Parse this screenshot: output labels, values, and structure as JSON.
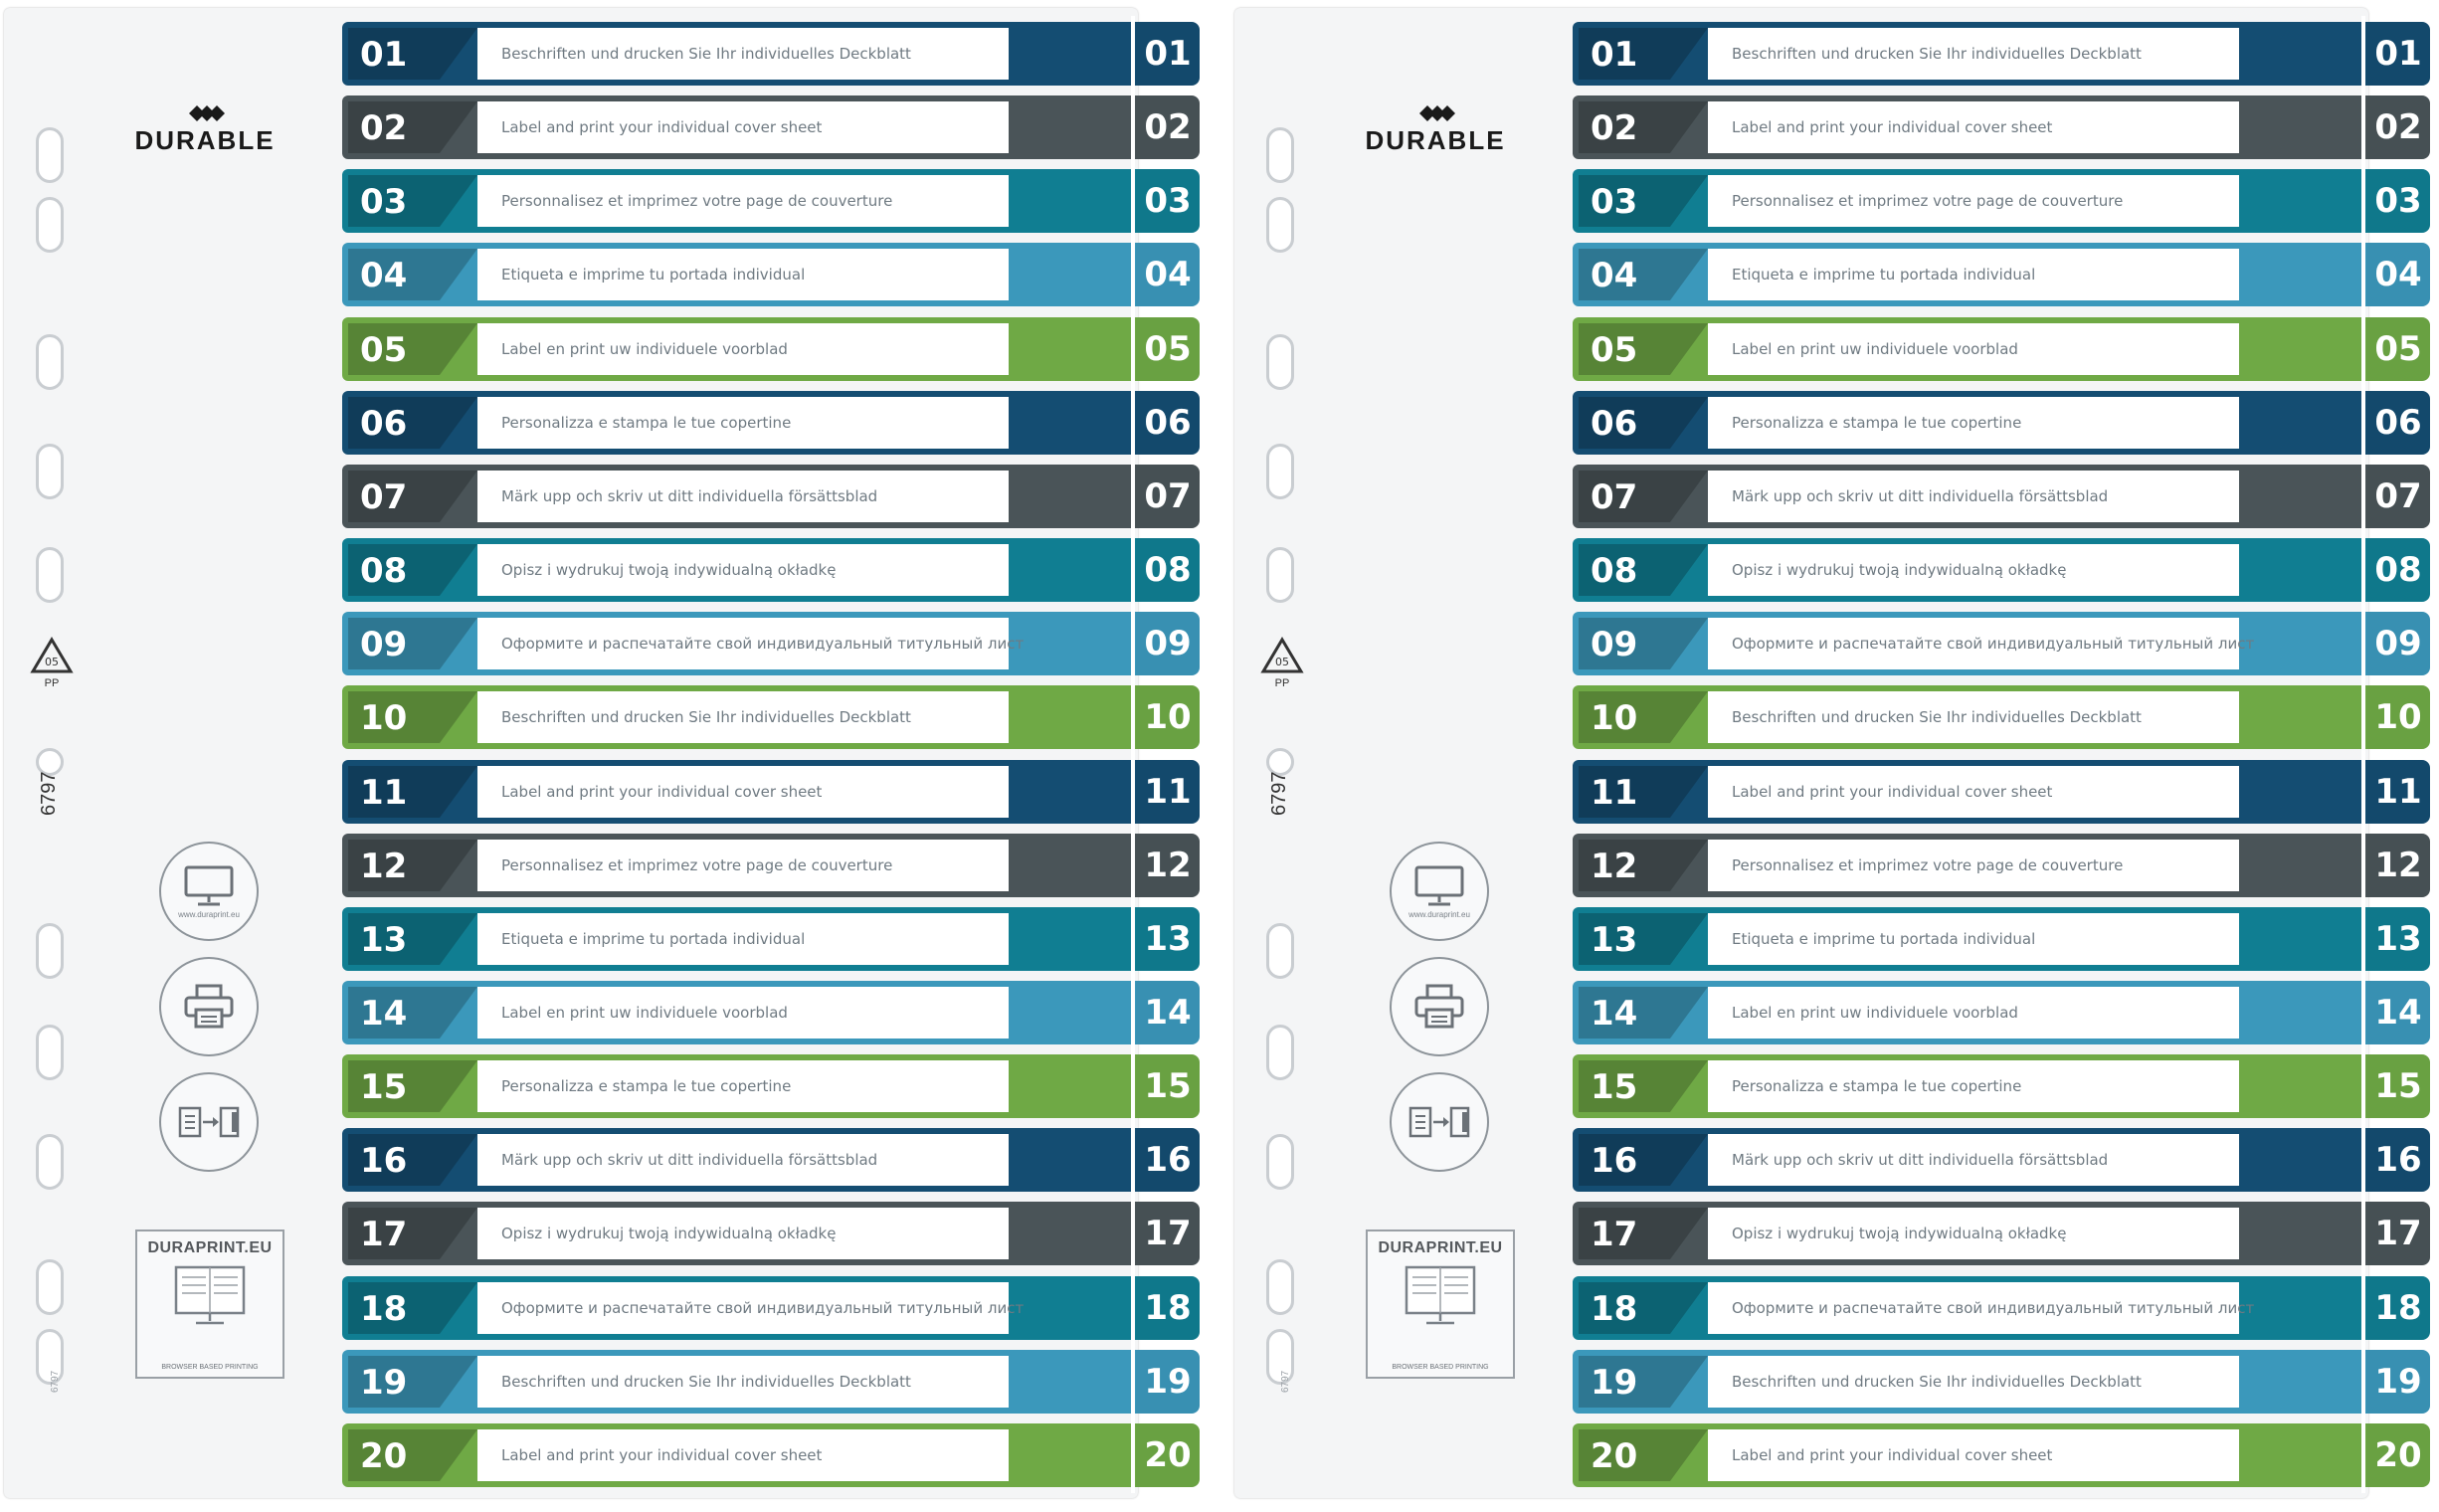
{
  "brand": {
    "name": "DURABLE"
  },
  "recycle": {
    "code": "05",
    "material": "PP"
  },
  "product_code": "6797",
  "small_code": "6797",
  "icons": [
    {
      "name": "monitor-icon",
      "caption": "www.duraprint.eu"
    },
    {
      "name": "printer-icon",
      "caption": ""
    },
    {
      "name": "insert-sheet-icon",
      "caption": ""
    }
  ],
  "duraprint": {
    "title": "DURAPRINT.EU",
    "subtitle": "BROWSER BASED PRINTING"
  },
  "colors": {
    "navy": "#144d72",
    "grey": "#4a5458",
    "teal": "#107e92",
    "lightblue": "#3b98bb",
    "green": "#6fa945"
  },
  "sheets": [
    {
      "rows": [
        {
          "num": "01",
          "text": "Beschriften und drucken Sie Ihr individuelles Deckblatt",
          "color": "#144d72"
        },
        {
          "num": "02",
          "text": "Label and print your individual cover sheet",
          "color": "#4a5458"
        },
        {
          "num": "03",
          "text": "Personnalisez et imprimez votre page de couverture",
          "color": "#107e92"
        },
        {
          "num": "04",
          "text": "Etiqueta e imprime tu portada individual",
          "color": "#3b98bb"
        },
        {
          "num": "05",
          "text": "Label en print uw individuele voorblad",
          "color": "#6fa945"
        },
        {
          "num": "06",
          "text": "Personalizza e stampa le tue copertine",
          "color": "#144d72"
        },
        {
          "num": "07",
          "text": "Märk upp och skriv ut ditt individuella försättsblad",
          "color": "#4a5458"
        },
        {
          "num": "08",
          "text": "Opisz i wydrukuj twoją indywidualną okładkę",
          "color": "#107e92"
        },
        {
          "num": "09",
          "text": "Оформите и распечатайте свой индивидуальный титульный лист",
          "color": "#3b98bb"
        },
        {
          "num": "10",
          "text": "Beschriften und drucken Sie Ihr individuelles Deckblatt",
          "color": "#6fa945"
        },
        {
          "num": "11",
          "text": "Label and print your individual cover sheet",
          "color": "#144d72"
        },
        {
          "num": "12",
          "text": "Personnalisez et imprimez votre page de couverture",
          "color": "#4a5458"
        },
        {
          "num": "13",
          "text": "Etiqueta e imprime tu portada individual",
          "color": "#107e92"
        },
        {
          "num": "14",
          "text": "Label en print uw individuele voorblad",
          "color": "#3b98bb"
        },
        {
          "num": "15",
          "text": "Personalizza e stampa le tue copertine",
          "color": "#6fa945"
        },
        {
          "num": "16",
          "text": "Märk upp och skriv ut ditt individuella försättsblad",
          "color": "#144d72"
        },
        {
          "num": "17",
          "text": "Opisz i wydrukuj twoją indywidualną okładkę",
          "color": "#4a5458"
        },
        {
          "num": "18",
          "text": "Оформите и распечатайте свой индивидуальный титульный лист",
          "color": "#107e92"
        },
        {
          "num": "19",
          "text": "Beschriften und drucken Sie Ihr individuelles Deckblatt",
          "color": "#3b98bb"
        },
        {
          "num": "20",
          "text": "Label and print your individual cover sheet",
          "color": "#6fa945"
        }
      ]
    },
    {
      "rows": [
        {
          "num": "01",
          "text": "Beschriften und drucken Sie Ihr individuelles Deckblatt",
          "color": "#144d72"
        },
        {
          "num": "02",
          "text": "Label and print your individual cover sheet",
          "color": "#4a5458"
        },
        {
          "num": "03",
          "text": "Personnalisez et imprimez votre page de couverture",
          "color": "#107e92"
        },
        {
          "num": "04",
          "text": "Etiqueta e imprime tu portada individual",
          "color": "#3b98bb"
        },
        {
          "num": "05",
          "text": "Label en print uw individuele voorblad",
          "color": "#6fa945"
        },
        {
          "num": "06",
          "text": "Personalizza e stampa le tue copertine",
          "color": "#144d72"
        },
        {
          "num": "07",
          "text": "Märk upp och skriv ut ditt individuella försättsblad",
          "color": "#4a5458"
        },
        {
          "num": "08",
          "text": "Opisz i wydrukuj twoją indywidualną okładkę",
          "color": "#107e92"
        },
        {
          "num": "09",
          "text": "Оформите и распечатайте свой индивидуальный титульный лист",
          "color": "#3b98bb"
        },
        {
          "num": "10",
          "text": "Beschriften und drucken Sie Ihr individuelles Deckblatt",
          "color": "#6fa945"
        },
        {
          "num": "11",
          "text": "Label and print your individual cover sheet",
          "color": "#144d72"
        },
        {
          "num": "12",
          "text": "Personnalisez et imprimez votre page de couverture",
          "color": "#4a5458"
        },
        {
          "num": "13",
          "text": "Etiqueta e imprime tu portada individual",
          "color": "#107e92"
        },
        {
          "num": "14",
          "text": "Label en print uw individuele voorblad",
          "color": "#3b98bb"
        },
        {
          "num": "15",
          "text": "Personalizza e stampa le tue copertine",
          "color": "#6fa945"
        },
        {
          "num": "16",
          "text": "Märk upp och skriv ut ditt individuella försättsblad",
          "color": "#144d72"
        },
        {
          "num": "17",
          "text": "Opisz i wydrukuj twoją indywidualną okładkę",
          "color": "#4a5458"
        },
        {
          "num": "18",
          "text": "Оформите и распечатайте свой индивидуальный титульный лист",
          "color": "#107e92"
        },
        {
          "num": "19",
          "text": "Beschriften und drucken Sie Ihr individuelles Deckblatt",
          "color": "#3b98bb"
        },
        {
          "num": "20",
          "text": "Label and print your individual cover sheet",
          "color": "#6fa945"
        }
      ]
    }
  ]
}
